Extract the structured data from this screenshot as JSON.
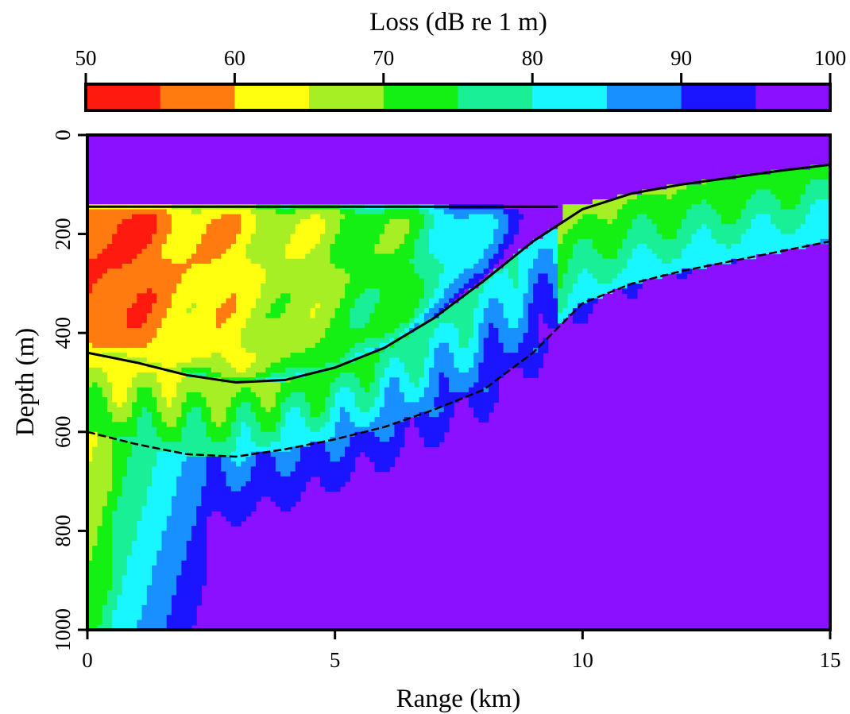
{
  "chart_data": {
    "type": "heatmap",
    "title": "",
    "colorbar": {
      "label": "Loss (dB re 1 m)",
      "ticks": [
        "50",
        "60",
        "70",
        "80",
        "90",
        "100"
      ],
      "range": [
        50,
        100
      ],
      "levels": [
        {
          "from": 50,
          "to": 55,
          "color": "#ff1a0f"
        },
        {
          "from": 55,
          "to": 60,
          "color": "#ff7a0f"
        },
        {
          "from": 60,
          "to": 65,
          "color": "#ffff10"
        },
        {
          "from": 65,
          "to": 70,
          "color": "#a6ef24"
        },
        {
          "from": 70,
          "to": 75,
          "color": "#14ef14"
        },
        {
          "from": 75,
          "to": 80,
          "color": "#18ef96"
        },
        {
          "from": 80,
          "to": 85,
          "color": "#18f7ff"
        },
        {
          "from": 85,
          "to": 90,
          "color": "#1890ff"
        },
        {
          "from": 90,
          "to": 95,
          "color": "#1a14ff"
        },
        {
          "from": 95,
          "to": 100,
          "color": "#8a10ff"
        }
      ]
    },
    "xlabel": "Range (km)",
    "ylabel": "Depth (m)",
    "xlim": [
      0,
      15
    ],
    "ylim": [
      0,
      1000
    ],
    "y_inverted": true,
    "xticks": [
      "0",
      "5",
      "10",
      "15"
    ],
    "yticks": [
      "0",
      "200",
      "400",
      "600",
      "800",
      "1000"
    ],
    "boundaries": {
      "sound_channel_top": {
        "x": [
          0,
          9.5,
          10,
          11,
          12,
          13,
          14,
          15
        ],
        "y": [
          145,
          145,
          140,
          118,
          100,
          86,
          72,
          60
        ]
      },
      "sloped_interface": {
        "x": [
          0,
          1,
          2,
          3,
          4,
          5,
          6,
          7,
          8,
          9,
          10,
          11,
          12,
          13,
          14,
          15
        ],
        "y": [
          440,
          460,
          485,
          500,
          495,
          470,
          430,
          370,
          295,
          215,
          150,
          118,
          100,
          86,
          72,
          60
        ]
      },
      "lower_boundary": {
        "x": [
          0,
          1,
          2,
          3,
          4,
          5,
          6,
          7,
          8,
          9,
          10,
          11,
          12,
          13,
          14,
          15
        ],
        "y": [
          600,
          625,
          645,
          650,
          635,
          615,
          590,
          555,
          515,
          440,
          340,
          300,
          275,
          255,
          235,
          215
        ]
      }
    }
  }
}
